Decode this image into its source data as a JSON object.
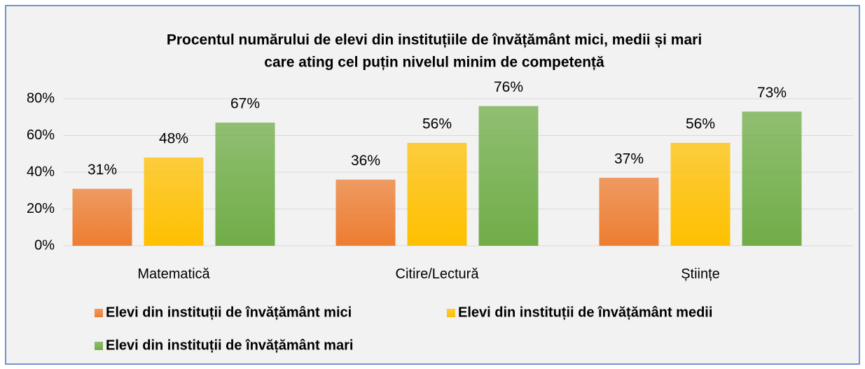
{
  "chart_data": {
    "type": "bar",
    "title": [
      "Procentul numărului de elevi din instituțiile de învățământ mici, medii și mari",
      "care ating cel puțin nivelul minim de competență"
    ],
    "categories": [
      "Matematică",
      "Citire/Lectură",
      "Științe"
    ],
    "series": [
      {
        "name": "Elevi din instituții de învățământ mici",
        "color": "#ed7d31",
        "values": [
          31,
          36,
          37
        ],
        "value_labels": [
          "31%",
          "36%",
          "37%"
        ]
      },
      {
        "name": "Elevi din instituții de învățământ medii",
        "color": "#ffc000",
        "values": [
          48,
          56,
          56
        ],
        "value_labels": [
          "48%",
          "56%",
          "56%"
        ]
      },
      {
        "name": "Elevi din instituții de învățământ mari",
        "color": "#70ad47",
        "values": [
          67,
          76,
          73
        ],
        "value_labels": [
          "67%",
          "76%",
          "73%"
        ]
      }
    ],
    "ylim": [
      0,
      80
    ],
    "yticks": [
      {
        "value": 0,
        "label": "0%"
      },
      {
        "value": 20,
        "label": "20%"
      },
      {
        "value": 40,
        "label": "40%"
      },
      {
        "value": 60,
        "label": "60%"
      },
      {
        "value": 80,
        "label": "80%"
      }
    ],
    "grid": true,
    "legend": "bottom"
  }
}
